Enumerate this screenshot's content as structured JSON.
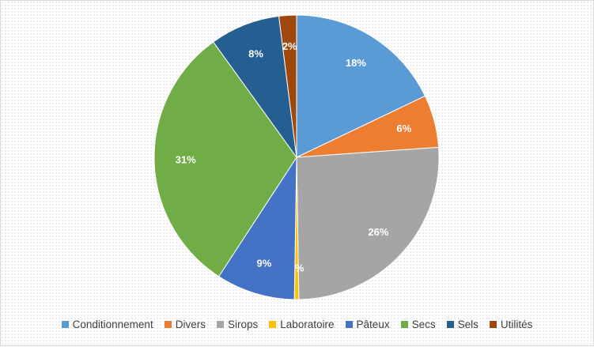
{
  "chart_data": {
    "type": "pie",
    "title": "",
    "categories": [
      "Conditionnement",
      "Divers",
      "Sirops",
      "Laboratoire",
      "Pâteux",
      "Secs",
      "Sels",
      "Utilités"
    ],
    "values": [
      18,
      6,
      26,
      0.5,
      9,
      31,
      8,
      2
    ],
    "labels": [
      "18%",
      "6%",
      "26%",
      "0%",
      "9%",
      "31%",
      "8%",
      "2%"
    ],
    "colors": [
      "#5b9bd5",
      "#ed7d31",
      "#a5a5a5",
      "#ffc000",
      "#4472c4",
      "#70ad47",
      "#255e91",
      "#9e480e"
    ],
    "legend_position": "bottom",
    "start_angle": "12 o'clock, clockwise"
  }
}
